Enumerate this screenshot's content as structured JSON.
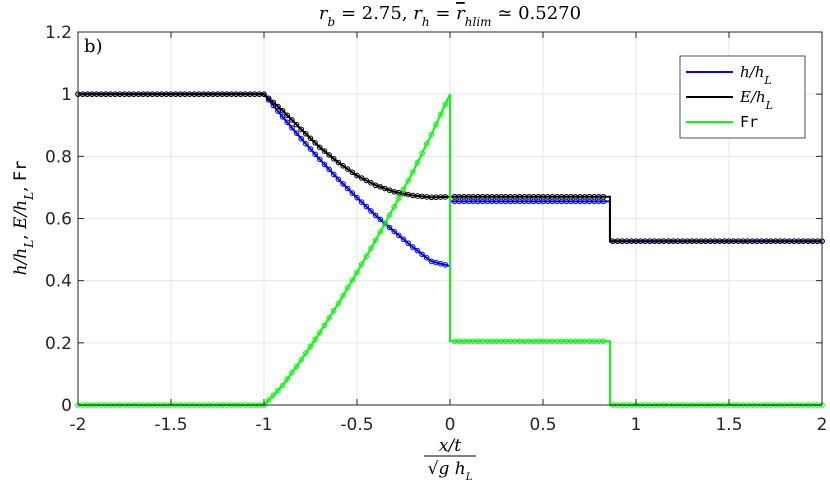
{
  "chart_data": {
    "type": "line",
    "title": "r_b = 2.75,    r_h = r̄_hlim ≃ 0.5270",
    "panel_label": "b)",
    "xlabel": {
      "numerator": "x/t",
      "denominator": "√(g h_L)"
    },
    "ylabel": "h/h_L,   E/h_L,   Fr",
    "xlim": [
      -2,
      2
    ],
    "ylim": [
      0,
      1.2
    ],
    "xticks": [
      -2,
      -1.5,
      -1,
      -0.5,
      0,
      0.5,
      1,
      1.5,
      2
    ],
    "xtick_labels": [
      "-2",
      "-1.5",
      "-1",
      "-0.5",
      "0",
      "0.5",
      "1",
      "1.5",
      "2"
    ],
    "yticks": [
      0,
      0.2,
      0.4,
      0.6,
      0.8,
      1,
      1.2
    ],
    "ytick_labels": [
      "0",
      "0.2",
      "0.4",
      "0.6",
      "0.8",
      "1",
      "1.2"
    ],
    "grid": true,
    "legend_position": "top-right",
    "series": [
      {
        "name": "h/h_L",
        "color": "#0000ff",
        "x": [
          -2,
          -1,
          -0.9,
          -0.8,
          -0.7,
          -0.6,
          -0.5,
          -0.4,
          -0.3,
          -0.2,
          -0.1,
          0,
          0,
          0.86,
          0.86,
          2
        ],
        "y": [
          1,
          1,
          0.927,
          0.857,
          0.79,
          0.726,
          0.667,
          0.61,
          0.558,
          0.508,
          0.462,
          0.447,
          0.655,
          0.655,
          0.527,
          0.527
        ]
      },
      {
        "name": "E/h_L",
        "color": "#000000",
        "x": [
          -2,
          -1,
          -0.9,
          -0.8,
          -0.7,
          -0.6,
          -0.5,
          -0.4,
          -0.3,
          -0.2,
          -0.1,
          0,
          0.86,
          0.86,
          2
        ],
        "y": [
          1,
          1,
          0.947,
          0.887,
          0.829,
          0.78,
          0.738,
          0.707,
          0.686,
          0.674,
          0.668,
          0.67,
          0.67,
          0.527,
          0.527
        ]
      },
      {
        "name": "Fr",
        "color": "#00ff00",
        "x": [
          -2,
          -1,
          -0.9,
          -0.8,
          -0.7,
          -0.6,
          -0.5,
          -0.4,
          -0.3,
          -0.2,
          -0.1,
          0,
          0,
          0.86,
          0.86,
          2
        ],
        "y": [
          0,
          0,
          0.063,
          0.145,
          0.233,
          0.327,
          0.427,
          0.53,
          0.638,
          0.75,
          0.87,
          1.0,
          0.205,
          0.205,
          0,
          0
        ]
      }
    ]
  }
}
